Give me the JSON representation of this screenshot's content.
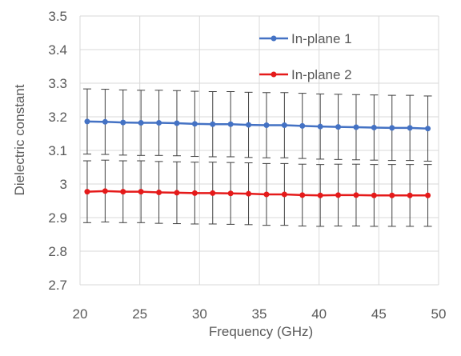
{
  "chart_data": {
    "type": "line",
    "title": "",
    "xlabel": "Frequency (GHz)",
    "ylabel": "Dielectric constant",
    "xlim": [
      20,
      50
    ],
    "ylim": [
      2.7,
      3.5
    ],
    "x_ticks": [
      "20",
      "25",
      "30",
      "35",
      "40",
      "45",
      "50"
    ],
    "y_ticks": [
      "2.7",
      "2.8",
      "2.9",
      "3",
      "3.1",
      "3.2",
      "3.3",
      "3.4",
      "3.5"
    ],
    "grid": true,
    "legend_position": "top-right",
    "x": [
      20.6,
      22.1,
      23.6,
      25.1,
      26.6,
      28.1,
      29.6,
      31.1,
      32.6,
      34.1,
      35.6,
      37.1,
      38.6,
      40.1,
      41.6,
      43.1,
      44.6,
      46.1,
      47.6,
      49.1
    ],
    "series": [
      {
        "name": "In-plane 1",
        "color": "#4472C4",
        "values": [
          3.186,
          3.185,
          3.183,
          3.182,
          3.182,
          3.181,
          3.179,
          3.178,
          3.178,
          3.176,
          3.175,
          3.175,
          3.173,
          3.171,
          3.17,
          3.169,
          3.168,
          3.167,
          3.167,
          3.165
        ],
        "error": 0.097
      },
      {
        "name": "In-plane 2",
        "color": "#E51A1A",
        "values": [
          2.977,
          2.979,
          2.977,
          2.977,
          2.975,
          2.974,
          2.973,
          2.973,
          2.972,
          2.971,
          2.969,
          2.969,
          2.967,
          2.966,
          2.967,
          2.967,
          2.966,
          2.966,
          2.966,
          2.966
        ],
        "error": 0.092
      }
    ],
    "error_bar_color": "#404040"
  }
}
